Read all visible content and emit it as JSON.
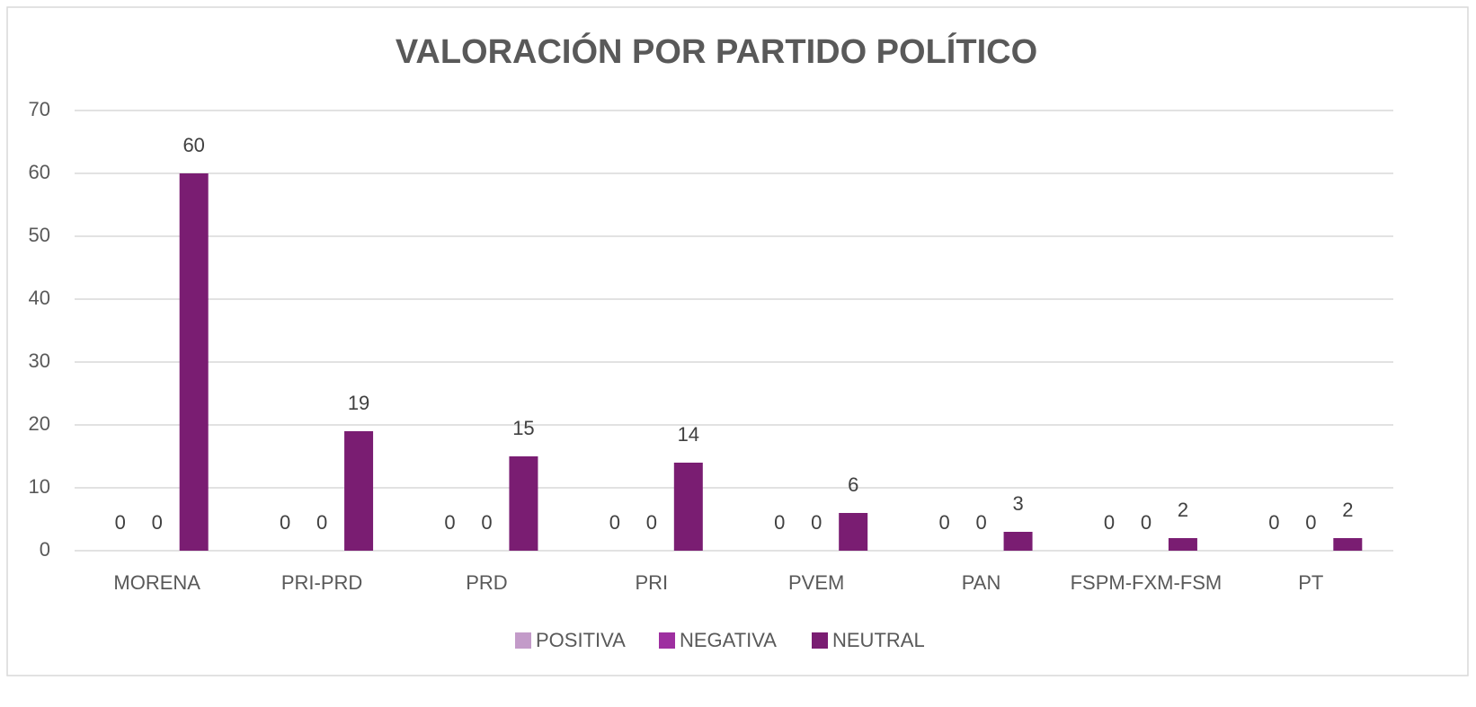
{
  "chart_data": {
    "type": "bar",
    "title": "VALORACIÓN POR PARTIDO POLÍTICO",
    "categories": [
      "MORENA",
      "PRI-PRD",
      "PRD",
      "PRI",
      "PVEM",
      "PAN",
      "FSPM-FXM-FSM",
      "PT"
    ],
    "series": [
      {
        "name": "POSITIVA",
        "color": "#c39bc9",
        "values": [
          0,
          0,
          0,
          0,
          0,
          0,
          0,
          0
        ]
      },
      {
        "name": "NEGATIVA",
        "color": "#9e2fa0",
        "values": [
          0,
          0,
          0,
          0,
          0,
          0,
          0,
          0
        ]
      },
      {
        "name": "NEUTRAL",
        "color": "#7a1d72",
        "values": [
          60,
          19,
          15,
          14,
          6,
          3,
          2,
          2
        ]
      }
    ],
    "ylim": [
      0,
      70
    ],
    "yticks": [
      0,
      10,
      20,
      30,
      40,
      50,
      60,
      70
    ],
    "grid": true,
    "legend": "bottom"
  }
}
